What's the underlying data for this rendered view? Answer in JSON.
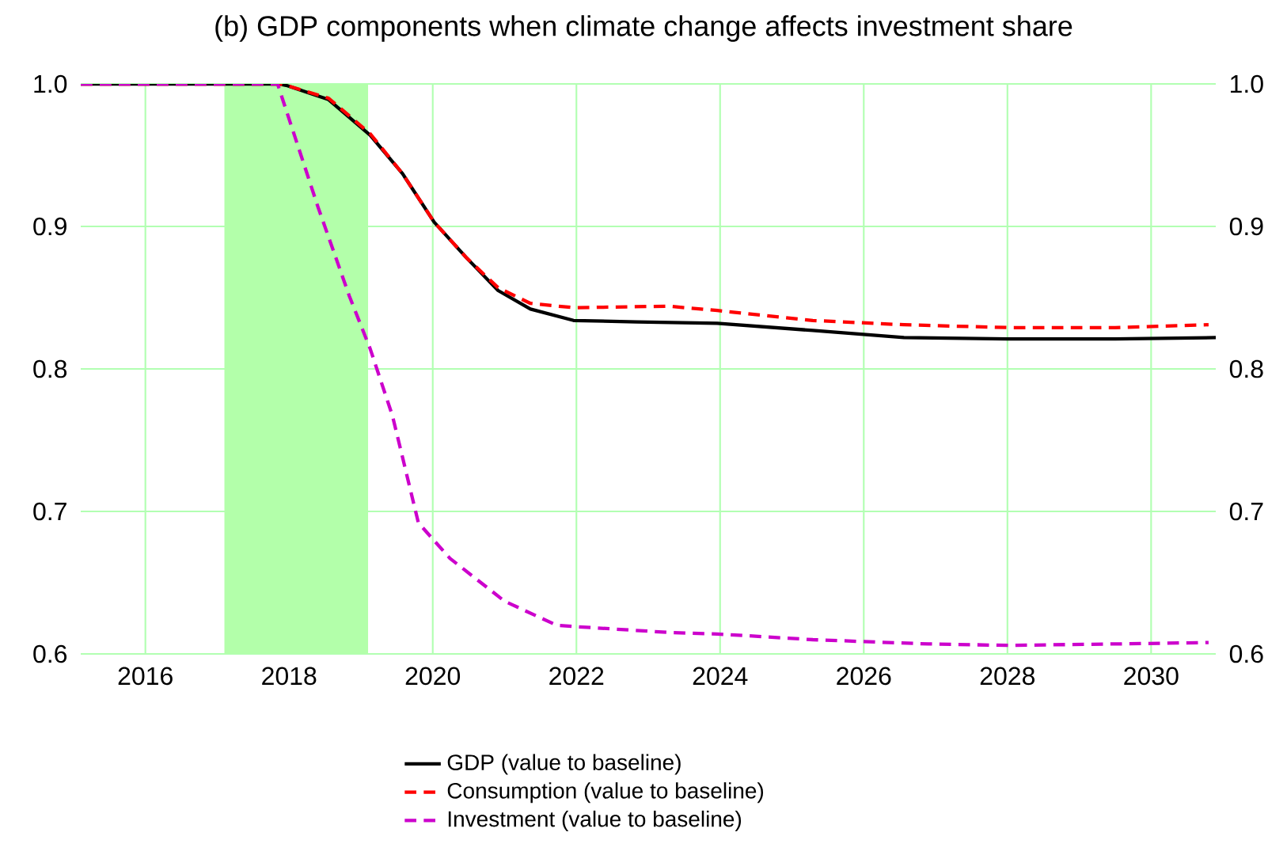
{
  "chart_data": {
    "type": "line",
    "title": "(b) GDP components when climate change affects investment share",
    "xlim": [
      2015.1,
      2030.9
    ],
    "xticks": [
      2016,
      2018,
      2020,
      2022,
      2024,
      2026,
      2028,
      2030
    ],
    "ylim": [
      0.6,
      1.0
    ],
    "yticks": [
      0.6,
      0.7,
      0.8,
      0.9,
      {
        "value": 1.0,
        "label": "1.0"
      }
    ],
    "y2lim": [
      0.6,
      1.0
    ],
    "y2ticks": [
      0.6,
      0.7,
      0.8,
      0.9,
      {
        "value": 1.0,
        "label": "1.0"
      }
    ],
    "grid": true,
    "legend": "bottom",
    "bands": [
      {
        "axis": "x",
        "from": 2017.1,
        "to": 2019.1,
        "color": "#b3ffaa"
      }
    ],
    "series": [
      {
        "name": "GDP (value to baseline)",
        "color": "#000000",
        "line_style": "solid",
        "x": [
          2015.1,
          2017.85,
          2017.96,
          2018.55,
          2019.13,
          2019.58,
          2020.02,
          2020.47,
          2020.91,
          2021.36,
          2021.96,
          2022.84,
          2023.96,
          2025.29,
          2026.56,
          2028.02,
          2029.5,
          2030.9
        ],
        "values": [
          1.0,
          1.0,
          0.999,
          0.989,
          0.964,
          0.937,
          0.903,
          0.878,
          0.855,
          0.842,
          0.834,
          0.833,
          0.832,
          0.827,
          0.822,
          0.821,
          0.821,
          0.822
        ]
      },
      {
        "name": "Consumption (value to baseline)",
        "color": "#ff0000",
        "line_style": "dashed",
        "x": [
          2015.1,
          2017.85,
          2017.96,
          2018.55,
          2019.13,
          2019.58,
          2020.02,
          2020.47,
          2020.91,
          2021.36,
          2021.96,
          2023.29,
          2023.96,
          2025.29,
          2026.56,
          2028.02,
          2029.5,
          2030.8
        ],
        "values": [
          1.0,
          1.0,
          0.999,
          0.99,
          0.965,
          0.937,
          0.903,
          0.878,
          0.857,
          0.846,
          0.843,
          0.844,
          0.841,
          0.834,
          0.831,
          0.829,
          0.829,
          0.831
        ]
      },
      {
        "name": "Investment (value to baseline)",
        "color": "#cc00cc",
        "line_style": "dashed",
        "x": [
          2015.1,
          2017.84,
          2018.4,
          2018.84,
          2019.13,
          2019.44,
          2019.8,
          2020.24,
          2021.0,
          2021.73,
          2023.3,
          2023.96,
          2025.29,
          2026.9,
          2028.02,
          2029.5,
          2030.8
        ],
        "values": [
          1.0,
          1.0,
          0.914,
          0.851,
          0.814,
          0.767,
          0.692,
          0.667,
          0.637,
          0.62,
          0.615,
          0.614,
          0.61,
          0.607,
          0.606,
          0.607,
          0.608
        ]
      }
    ]
  }
}
